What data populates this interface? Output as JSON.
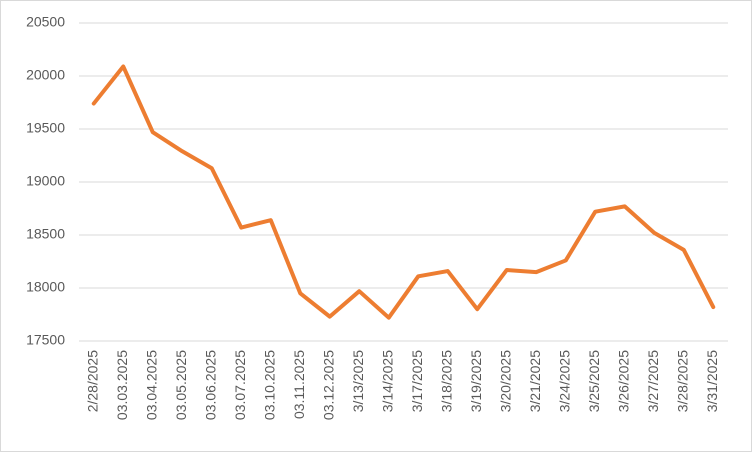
{
  "chart_data": {
    "type": "line",
    "categories": [
      "2/28/2025",
      "03.03.2025",
      "03.04.2025",
      "03.05.2025",
      "03.06.2025",
      "03.07.2025",
      "03.10.2025",
      "03.11.2025",
      "03.12.2025",
      "3/13/2025",
      "3/14/2025",
      "3/17/2025",
      "3/18/2025",
      "3/19/2025",
      "3/20/2025",
      "3/21/2025",
      "3/24/2025",
      "3/25/2025",
      "3/26/2025",
      "3/27/2025",
      "3/28/2025",
      "3/31/2025"
    ],
    "values": [
      19740,
      20090,
      19470,
      19290,
      19130,
      18570,
      18640,
      17950,
      17730,
      17970,
      17720,
      18110,
      18160,
      17800,
      18170,
      18150,
      18260,
      18720,
      18770,
      18520,
      18360,
      17820
    ],
    "color": "#ed7d31",
    "ylim": [
      17500,
      20500
    ],
    "yticks": [
      17500,
      18000,
      18500,
      19000,
      19500,
      20000,
      20500
    ],
    "grid": true
  }
}
